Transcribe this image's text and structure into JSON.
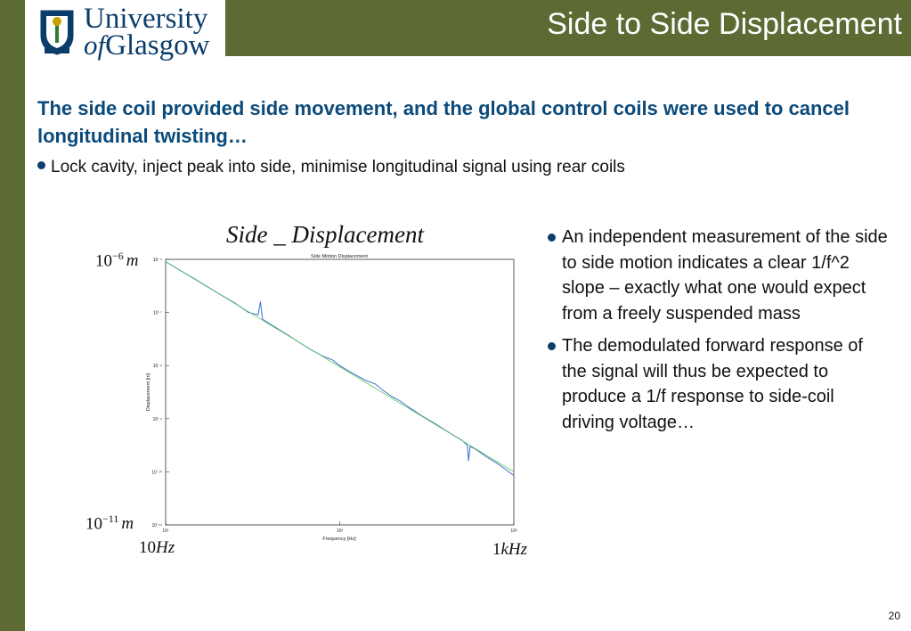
{
  "slide": {
    "title": "Side to Side Displacement",
    "logo": {
      "line1": "University",
      "line2_of": "of",
      "line2_rest": "Glasgow"
    },
    "headline": "The side coil provided side movement, and the global control coils were used to cancel longitudinal twisting…",
    "bullet_top": "Lock cavity, inject peak into side, minimise longitudinal signal using rear coils",
    "right_bullets": [
      "An independent measurement of the side to side motion indicates a clear 1/f^2 slope – exactly what one would expect from a freely suspended mass",
      "The demodulated forward response of the signal will thus be expected to produce a 1/f response to side-coil driving voltage…"
    ],
    "page_number": "20",
    "colors": {
      "band": "#5c6b33",
      "headline": "#0b4a7a",
      "plot_line": "#3a6fd0",
      "fit_line": "#5cc85c"
    }
  },
  "annotations": {
    "plot_heading": "Side _ Displacement",
    "y_top": {
      "mantissa": "10",
      "exp": "−6",
      "unit": "m"
    },
    "y_bottom": {
      "mantissa": "10",
      "exp": "−11",
      "unit": "m"
    },
    "x_left": {
      "num": "10",
      "unit": "Hz"
    },
    "x_right": {
      "num": "1",
      "unit": "kHz"
    }
  },
  "chart_data": {
    "type": "line",
    "title": "Side Motion Displacement",
    "xlabel": "Frequency [Hz]",
    "ylabel": "Displacement [m]",
    "xscale": "log",
    "yscale": "log",
    "xlim": [
      10,
      1000
    ],
    "ylim": [
      1e-11,
      1e-06
    ],
    "x_ticks": [
      "10¹",
      "10²",
      "10³"
    ],
    "y_ticks": [
      "10⁻⁶",
      "10⁻⁷",
      "10⁻⁸",
      "10⁻⁹",
      "10⁻¹⁰",
      "10⁻¹¹"
    ],
    "series": [
      {
        "name": "",
        "x": [
          10,
          15,
          20,
          25,
          30,
          34,
          35,
          36,
          40,
          50,
          60,
          70,
          80,
          90,
          100,
          110,
          120,
          140,
          160,
          180,
          200,
          220,
          240,
          260,
          300,
          350,
          400,
          450,
          500,
          540,
          550,
          560,
          600,
          700,
          800,
          900,
          1000
        ],
        "y": [
          9e-07,
          4.1e-07,
          2.3e-07,
          1.5e-07,
          1e-07,
          9e-08,
          1.6e-07,
          7.5e-08,
          6e-08,
          3.8e-08,
          2.6e-08,
          1.9e-08,
          1.5e-08,
          1.3e-08,
          1e-08,
          8.3e-09,
          7e-09,
          5.3e-09,
          4.5e-09,
          3.3e-09,
          2.6e-09,
          2.2e-09,
          1.8e-09,
          1.5e-09,
          1.1e-09,
          8.2e-10,
          6.2e-10,
          4.9e-10,
          4e-10,
          3.2e-10,
          1.6e-10,
          3e-10,
          2.7e-10,
          1.9e-10,
          1.45e-10,
          1.1e-10,
          8.5e-11
        ]
      },
      {
        "name": "",
        "x": [
          10,
          1000
        ],
        "y": [
          9e-07,
          1e-10
        ]
      }
    ]
  }
}
